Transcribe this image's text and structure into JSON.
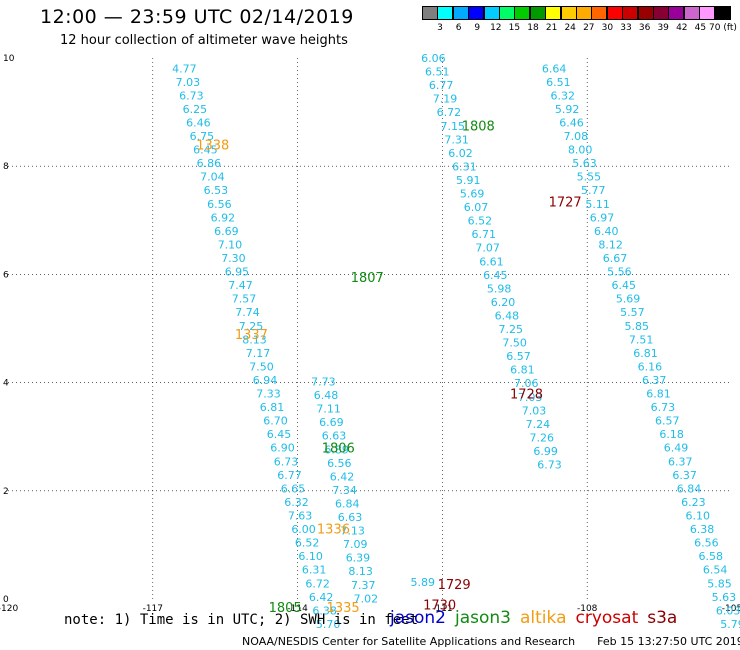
{
  "header": {
    "title": "12:00 — 23:59 UTC 02/14/2019",
    "subtitle": "12 hour collection of altimeter wave heights"
  },
  "colorbar": {
    "colors": [
      "#7f7f7f",
      "#00ffff",
      "#00aaff",
      "#0000ff",
      "#00ccff",
      "#00ff66",
      "#00cc00",
      "#009900",
      "#ffff00",
      "#ffcc00",
      "#ffaa00",
      "#ff6600",
      "#ff0000",
      "#cc0000",
      "#990000",
      "#880033",
      "#990099",
      "#cc66cc",
      "#ff99ff",
      "#000000"
    ],
    "labels": [
      "3",
      "6",
      "9",
      "12",
      "15",
      "18",
      "21",
      "24",
      "27",
      "30",
      "33",
      "36",
      "39",
      "42",
      "45",
      "70 (ft)"
    ]
  },
  "axes": {
    "x_ticks": [
      "-120",
      "-117",
      "-114",
      "-111",
      "-108",
      "-105"
    ],
    "x_values": [
      -120,
      -117,
      -114,
      -111,
      -108,
      -105
    ],
    "y_ticks": [
      "0",
      "2",
      "4",
      "6",
      "8",
      "10"
    ],
    "y_values": [
      0,
      2,
      4,
      6,
      8,
      10
    ],
    "xlim": [
      -120,
      -105
    ],
    "ylim": [
      0,
      10
    ],
    "grid": true
  },
  "chart_data": {
    "type": "scatter",
    "colors": {
      "cyan": "#1fbde8",
      "green": "#118a11",
      "orange": "#f29c12",
      "darkred": "#8b0000"
    },
    "passes": [
      {
        "color": "cyan",
        "y_top": 9.81,
        "y_step": 0.2505,
        "x_start": -116.6,
        "x_slope": 0.29,
        "values": [
          "4.77",
          "7.03",
          "6.73",
          "6.25",
          "6.46",
          "6.75",
          "6.45",
          "6.86",
          "7.04",
          "6.53",
          "6.56",
          "6.92",
          "6.69",
          "7.10",
          "7.30",
          "6.95",
          "7.47",
          "7.57",
          "7.74",
          "7.25",
          "8.13",
          "7.17",
          "7.50",
          "6.94",
          "7.33",
          "6.81",
          "6.70",
          "6.45",
          "6.90",
          "6.73",
          "6.77",
          "6.65",
          "6.32",
          "7.63",
          "6.00",
          "6.52",
          "6.10",
          "6.31",
          "6.72",
          "6.42",
          "6.38",
          "5.70"
        ]
      },
      {
        "color": "cyan",
        "y_top": 4.02,
        "y_step": 0.2505,
        "x_start": -113.72,
        "x_slope": 0.22,
        "values": [
          "7.73",
          "6.48",
          "7.11",
          "6.69",
          "6.63",
          "6.89",
          "6.56",
          "6.42",
          "7.34",
          "6.84",
          "6.63",
          "7.13",
          "7.09",
          "6.39",
          "8.13",
          "7.37",
          "7.02"
        ]
      },
      {
        "color": "cyan",
        "y_top": 10.0,
        "y_step": 0.2505,
        "x_start": -111.44,
        "x_slope": 0.32,
        "values": [
          "6.06",
          "6.51",
          "6.77",
          "7.19",
          "6.72",
          "7.15",
          "7.31",
          "6.02",
          "6.31",
          "5.91",
          "5.69",
          "6.07",
          "6.52",
          "6.71",
          "7.07",
          "6.61",
          "6.45",
          "5.98",
          "6.20",
          "6.48",
          "7.25",
          "7.50",
          "6.57",
          "6.81",
          "7.06",
          "7.03",
          "7.03",
          "7.24",
          "7.26",
          "6.99",
          "6.73"
        ]
      },
      {
        "color": "cyan",
        "y_top": 9.81,
        "y_step": 0.2505,
        "x_start": -108.94,
        "x_slope": 0.36,
        "values": [
          "6.64",
          "6.51",
          "6.32",
          "5.92",
          "6.46",
          "7.08",
          "8.00",
          "5.63",
          "5.55",
          "5.77",
          "5.11",
          "6.97",
          "6.40",
          "8.12",
          "6.67",
          "5.56",
          "6.45",
          "5.69",
          "5.57",
          "5.85",
          "7.51",
          "6.81",
          "6.16",
          "6.37",
          "6.81",
          "6.73",
          "6.57",
          "6.18",
          "6.49",
          "6.37",
          "6.37",
          "6.84",
          "6.23",
          "6.10",
          "6.38",
          "6.56",
          "6.58",
          "6.54",
          "5.85",
          "5.63",
          "6.03",
          "5.79"
        ]
      }
    ],
    "extras": [
      {
        "text": "5.89",
        "x": -111.66,
        "y": 0.31
      }
    ],
    "pass_times": [
      {
        "text": "1338",
        "color": "orange",
        "x": -116.1,
        "y": 8.4
      },
      {
        "text": "1337",
        "color": "orange",
        "x": -115.3,
        "y": 4.9
      },
      {
        "text": "1336",
        "color": "orange",
        "x": -113.6,
        "y": 1.3
      },
      {
        "text": "1335",
        "color": "orange",
        "x": -113.4,
        "y": -0.15
      },
      {
        "text": "1808",
        "color": "green",
        "x": -110.6,
        "y": 8.75
      },
      {
        "text": "1807",
        "color": "green",
        "x": -112.9,
        "y": 5.95
      },
      {
        "text": "1806",
        "color": "green",
        "x": -113.5,
        "y": 2.8
      },
      {
        "text": "1805",
        "color": "green",
        "x": -114.6,
        "y": -0.15
      },
      {
        "text": "1727",
        "color": "darkred",
        "x": -108.8,
        "y": 7.35
      },
      {
        "text": "1728",
        "color": "darkred",
        "x": -109.6,
        "y": 3.8
      },
      {
        "text": "1729",
        "color": "darkred",
        "x": -111.1,
        "y": 0.28
      },
      {
        "text": "1730",
        "color": "darkred",
        "x": -111.4,
        "y": -0.1
      }
    ]
  },
  "footer": {
    "note": "note: 1) Time is in UTC; 2) SWH is in feet",
    "legend": [
      {
        "label": "jason2",
        "color": "#0000cc"
      },
      {
        "label": "jason3",
        "color": "#118a11"
      },
      {
        "label": "altika",
        "color": "#f29c12"
      },
      {
        "label": "cryosat",
        "color": "#cc0000"
      },
      {
        "label": "s3a",
        "color": "#8b0000"
      }
    ],
    "credits_left": "NOAA/NESDIS Center for Satellite Applications and Research",
    "credits_right": "Feb 15 13:27:50 UTC 2019"
  }
}
